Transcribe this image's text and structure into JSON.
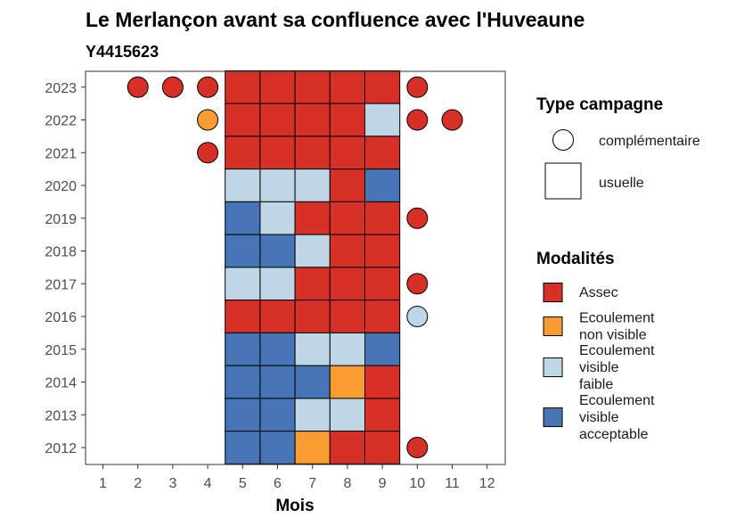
{
  "chart_data": {
    "type": "heatmap",
    "title": "Le Merlançon avant sa confluence avec l'Huveaune",
    "subtitle": "Y4415623",
    "xlabel": "Mois",
    "ylabel": "",
    "x_ticks": [
      1,
      2,
      3,
      4,
      5,
      6,
      7,
      8,
      9,
      10,
      11,
      12
    ],
    "y_ticks": [
      2012,
      2013,
      2014,
      2015,
      2016,
      2017,
      2018,
      2019,
      2020,
      2021,
      2022,
      2023
    ],
    "grid": false,
    "legend_position": "right",
    "legend_type": {
      "title": "Type campagne",
      "entries": [
        {
          "label": "complémentaire",
          "shape": "circle"
        },
        {
          "label": "usuelle",
          "shape": "square"
        }
      ]
    },
    "legend_modalites": {
      "title": "Modalités",
      "entries": [
        {
          "key": "assec",
          "lines": [
            "Assec"
          ],
          "color": "#d73027"
        },
        {
          "key": "ecoul_non_visible",
          "lines": [
            "Ecoulement",
            "non visible"
          ],
          "color": "#f99d32"
        },
        {
          "key": "ecoul_faible",
          "lines": [
            "Ecoulement",
            "visible",
            "faible"
          ],
          "color": "#bdd7e7"
        },
        {
          "key": "ecoul_acceptable",
          "lines": [
            "Ecoulement",
            "visible",
            "acceptable"
          ],
          "color": "#4575b4"
        }
      ]
    },
    "usuelle": [
      {
        "year": 2023,
        "months": {
          "5": "assec",
          "6": "assec",
          "7": "assec",
          "8": "assec",
          "9": "assec"
        }
      },
      {
        "year": 2022,
        "months": {
          "5": "assec",
          "6": "assec",
          "7": "assec",
          "8": "assec",
          "9": "ecoul_faible"
        }
      },
      {
        "year": 2021,
        "months": {
          "5": "assec",
          "6": "assec",
          "7": "assec",
          "8": "assec",
          "9": "assec"
        }
      },
      {
        "year": 2020,
        "months": {
          "5": "ecoul_faible",
          "6": "ecoul_faible",
          "7": "ecoul_faible",
          "8": "assec",
          "9": "ecoul_acceptable"
        }
      },
      {
        "year": 2019,
        "months": {
          "5": "ecoul_acceptable",
          "6": "ecoul_faible",
          "7": "assec",
          "8": "assec",
          "9": "assec"
        }
      },
      {
        "year": 2018,
        "months": {
          "5": "ecoul_acceptable",
          "6": "ecoul_acceptable",
          "7": "ecoul_faible",
          "8": "assec",
          "9": "assec"
        }
      },
      {
        "year": 2017,
        "months": {
          "5": "ecoul_faible",
          "6": "ecoul_faible",
          "7": "assec",
          "8": "assec",
          "9": "assec"
        }
      },
      {
        "year": 2016,
        "months": {
          "5": "assec",
          "6": "assec",
          "7": "assec",
          "8": "assec",
          "9": "assec"
        }
      },
      {
        "year": 2015,
        "months": {
          "5": "ecoul_acceptable",
          "6": "ecoul_acceptable",
          "7": "ecoul_faible",
          "8": "ecoul_faible",
          "9": "ecoul_acceptable"
        }
      },
      {
        "year": 2014,
        "months": {
          "5": "ecoul_acceptable",
          "6": "ecoul_acceptable",
          "7": "ecoul_acceptable",
          "8": "ecoul_non_visible",
          "9": "assec"
        }
      },
      {
        "year": 2013,
        "months": {
          "5": "ecoul_acceptable",
          "6": "ecoul_acceptable",
          "7": "ecoul_faible",
          "8": "ecoul_faible",
          "9": "assec"
        }
      },
      {
        "year": 2012,
        "months": {
          "5": "ecoul_acceptable",
          "6": "ecoul_acceptable",
          "7": "ecoul_non_visible",
          "8": "assec",
          "9": "assec"
        }
      }
    ],
    "complementaire": [
      {
        "year": 2023,
        "month": 2,
        "value": "assec"
      },
      {
        "year": 2023,
        "month": 3,
        "value": "assec"
      },
      {
        "year": 2023,
        "month": 4,
        "value": "assec"
      },
      {
        "year": 2023,
        "month": 10,
        "value": "assec"
      },
      {
        "year": 2022,
        "month": 4,
        "value": "ecoul_non_visible"
      },
      {
        "year": 2022,
        "month": 10,
        "value": "assec"
      },
      {
        "year": 2022,
        "month": 11,
        "value": "assec"
      },
      {
        "year": 2021,
        "month": 4,
        "value": "assec"
      },
      {
        "year": 2019,
        "month": 10,
        "value": "assec"
      },
      {
        "year": 2017,
        "month": 10,
        "value": "assec"
      },
      {
        "year": 2016,
        "month": 10,
        "value": "ecoul_faible"
      },
      {
        "year": 2012,
        "month": 10,
        "value": "assec"
      }
    ]
  }
}
